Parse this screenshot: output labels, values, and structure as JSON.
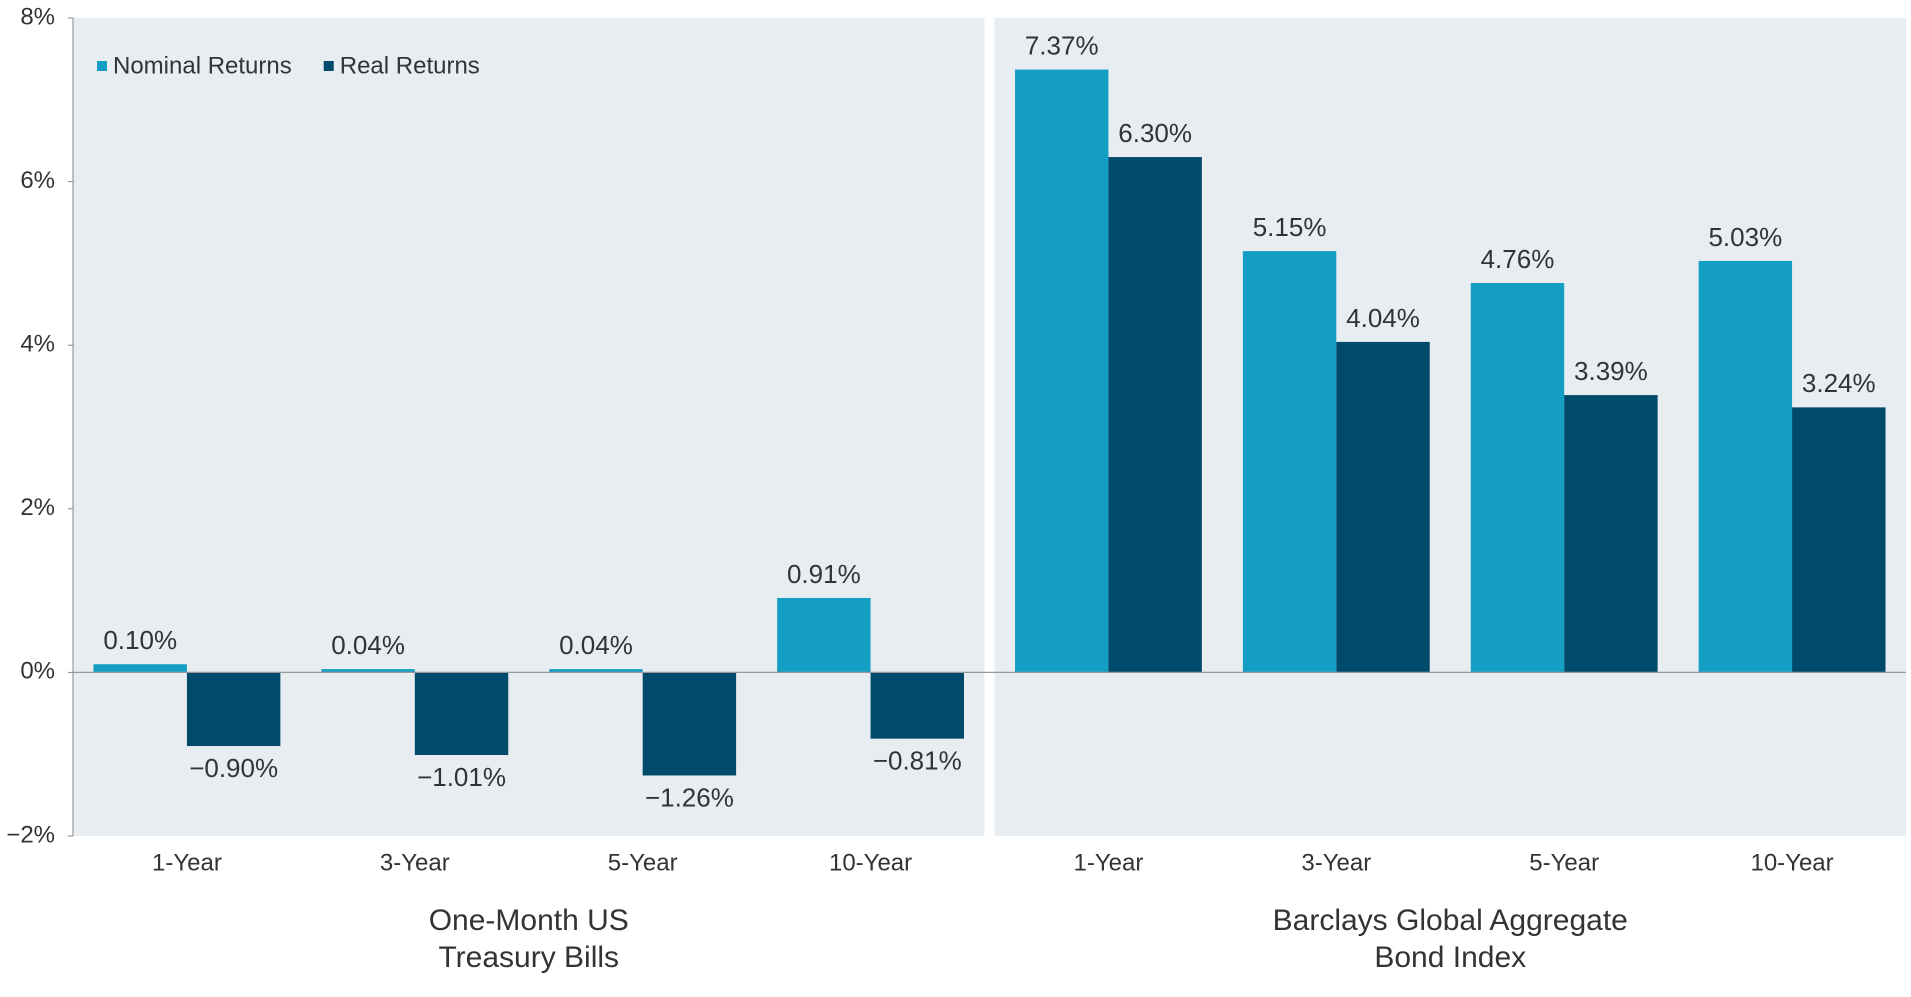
{
  "chart_data": {
    "type": "bar",
    "categories": [
      "1-Year",
      "3-Year",
      "5-Year",
      "10-Year",
      "1-Year",
      "3-Year",
      "5-Year",
      "10-Year"
    ],
    "groups": [
      {
        "label": [
          "One-Month US",
          "Treasury Bills"
        ]
      },
      {
        "label": [
          "Barclays Global  Aggregate",
          "Bond Index"
        ]
      }
    ],
    "series": [
      {
        "name": "Nominal Returns",
        "color": "#159ec4",
        "values": [
          0.1,
          0.04,
          0.04,
          0.91,
          7.37,
          5.15,
          4.76,
          5.03
        ],
        "value_labels": [
          "0.10%",
          "0.04%",
          "0.04%",
          "0.91%",
          "7.37%",
          "5.15%",
          "4.76%",
          "5.03%"
        ]
      },
      {
        "name": "Real Returns",
        "color": "#004b6b",
        "values": [
          -0.9,
          -1.01,
          -1.26,
          -0.81,
          6.3,
          4.04,
          3.39,
          3.24
        ],
        "value_labels": [
          "−0.90%",
          "−1.01%",
          "−1.26%",
          "−0.81%",
          "6.30%",
          "4.04%",
          "3.39%",
          "3.24%"
        ]
      }
    ],
    "ylim": [
      -2,
      8
    ],
    "yticks": [
      {
        "value": -2,
        "label": "−2%"
      },
      {
        "value": 0,
        "label": "0%"
      },
      {
        "value": 2,
        "label": "2%"
      },
      {
        "value": 4,
        "label": "4%"
      },
      {
        "value": 6,
        "label": "6%"
      },
      {
        "value": 8,
        "label": "8%"
      }
    ],
    "legend": "upper left"
  }
}
